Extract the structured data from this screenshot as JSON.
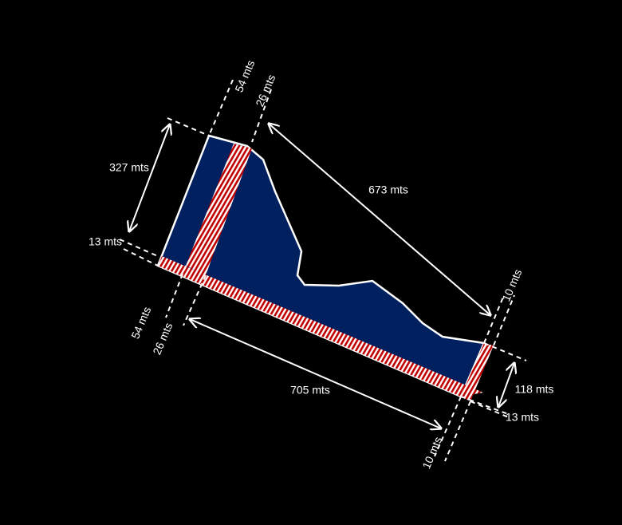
{
  "labels": {
    "top_54": "54 mts",
    "top_26": "26 mts",
    "left_327": "327 mts",
    "diag_673": "673 mts",
    "left_13": "13 mts",
    "bottom_54": "54 mts",
    "bottom_26": "26 mts",
    "bottom_705": "705 mts",
    "right_10_top": "10 mts",
    "right_118": "118 mts",
    "right_13": "13 mts",
    "right_10_bottom": "10 mts"
  }
}
